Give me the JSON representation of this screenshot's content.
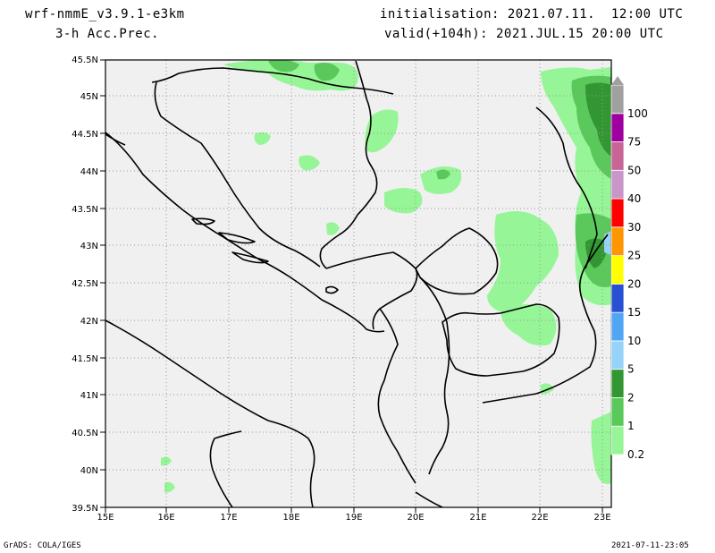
{
  "header": {
    "model": "wrf-nmmE_v3.9.1-e3km",
    "field": "3-h Acc.Prec.",
    "init": "initialisation: 2021.07.11.  12:00 UTC",
    "valid": "valid(+104h): 2021.JUL.15 20:00 UTC"
  },
  "footer": {
    "left": "GrADS: COLA/IGES",
    "right": "2021-07-11-23:05"
  },
  "map": {
    "lat_labels": [
      "45.5N",
      "45N",
      "44.5N",
      "44N",
      "43.5N",
      "43N",
      "42.5N",
      "42N",
      "41.5N",
      "41N",
      "40.5N",
      "40N",
      "39.5N"
    ],
    "lon_labels": [
      "15E",
      "16E",
      "17E",
      "18E",
      "19E",
      "20E",
      "21E",
      "22E",
      "23E"
    ],
    "lat_range": [
      39.5,
      45.5
    ],
    "lon_range": [
      15,
      23.3
    ],
    "grid": "dotted",
    "background_color": "#f0f0f0"
  },
  "colorbar": {
    "levels": [
      {
        "label": "0.2",
        "color": "#96f596"
      },
      {
        "label": "1",
        "color": "#5ac85a"
      },
      {
        "label": "2",
        "color": "#329632"
      },
      {
        "label": "5",
        "color": "#96d2fa"
      },
      {
        "label": "10",
        "color": "#50a5f5"
      },
      {
        "label": "15",
        "color": "#2850d2"
      },
      {
        "label": "20",
        "color": "#ffff00"
      },
      {
        "label": "25",
        "color": "#ff9600"
      },
      {
        "label": "30",
        "color": "#ff0000"
      },
      {
        "label": "40",
        "color": "#c896c8"
      },
      {
        "label": "50",
        "color": "#c86496"
      },
      {
        "label": "75",
        "color": "#a000a0"
      },
      {
        "label": "100",
        "color": "#a0a0a0"
      }
    ]
  }
}
